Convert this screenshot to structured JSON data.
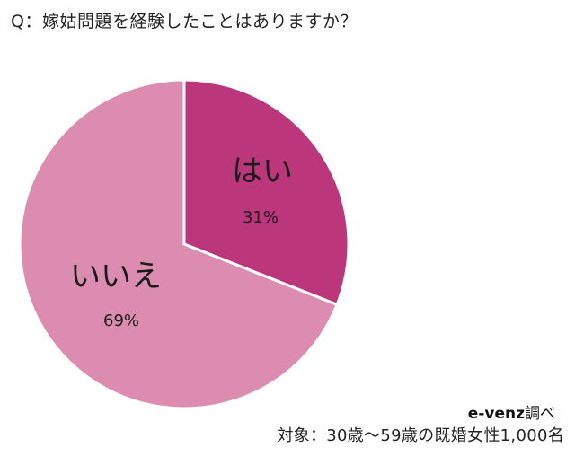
{
  "title": "Q：嫁姑問題を経験したことはありますか？",
  "chart_data": {
    "type": "pie",
    "title": "Q：嫁姑問題を経験したことはありますか？",
    "categories": [
      "はい",
      "いいえ"
    ],
    "values": [
      31,
      69
    ],
    "labels": [
      "31%",
      "69%"
    ],
    "colors": [
      "#bc367c",
      "#dc8cb0"
    ],
    "start_angle": "12 o'clock",
    "direction": "clockwise",
    "legend": "none (labels inside slices)"
  },
  "slices": [
    {
      "label": "はい",
      "percent": "31%",
      "color": "#bc367c"
    },
    {
      "label": "いいえ",
      "percent": "69%",
      "color": "#dc8cb0"
    }
  ],
  "footer": {
    "source_brand": "e-venz",
    "source_suffix": "調べ",
    "sample": "対象：30歳〜59歳の既婚女性1,000名"
  }
}
